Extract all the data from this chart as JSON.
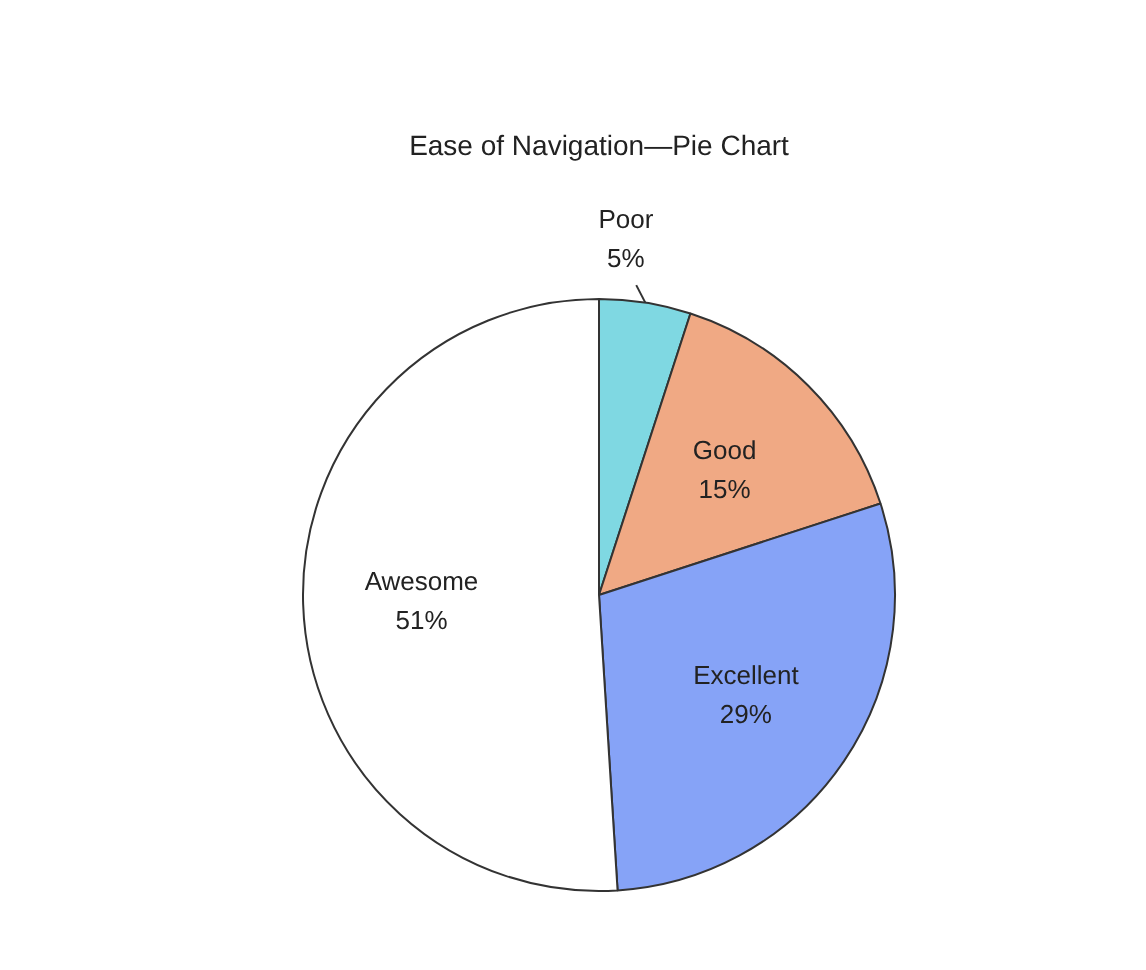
{
  "chart_data": {
    "type": "pie",
    "title": "Ease of Navigation—Pie Chart",
    "categories": [
      "Poor",
      "Good",
      "Excellent",
      "Awesome"
    ],
    "values": [
      5,
      15,
      29,
      51
    ],
    "colors": [
      "#7fd8e2",
      "#f0a984",
      "#86a3f7",
      "#ffffff"
    ],
    "value_labels": [
      "5%",
      "15%",
      "29%",
      "51%"
    ]
  }
}
